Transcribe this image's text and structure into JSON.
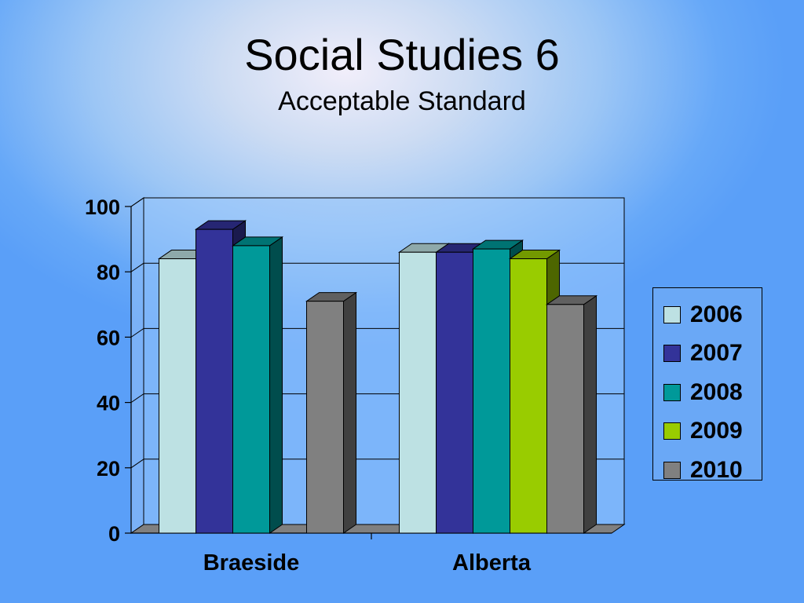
{
  "slide": {
    "title": "Social Studies 6",
    "subtitle": "Acceptable Standard"
  },
  "chart_data": {
    "type": "bar",
    "style": "3d-clustered-column",
    "categories": [
      "Braeside",
      "Alberta"
    ],
    "series": [
      {
        "name": "2006",
        "color": "#bde1e3",
        "values": [
          84,
          86
        ]
      },
      {
        "name": "2007",
        "color": "#333399",
        "values": [
          93,
          86
        ]
      },
      {
        "name": "2008",
        "color": "#009999",
        "values": [
          88,
          87
        ]
      },
      {
        "name": "2009",
        "color": "#99cc00",
        "values": [
          null,
          84
        ]
      },
      {
        "name": "2010",
        "color": "#808080",
        "values": [
          71,
          70
        ]
      }
    ],
    "ylim": [
      0,
      100
    ],
    "yticks": [
      0,
      20,
      40,
      60,
      80,
      100
    ],
    "grid": true,
    "legend_position": "right"
  }
}
